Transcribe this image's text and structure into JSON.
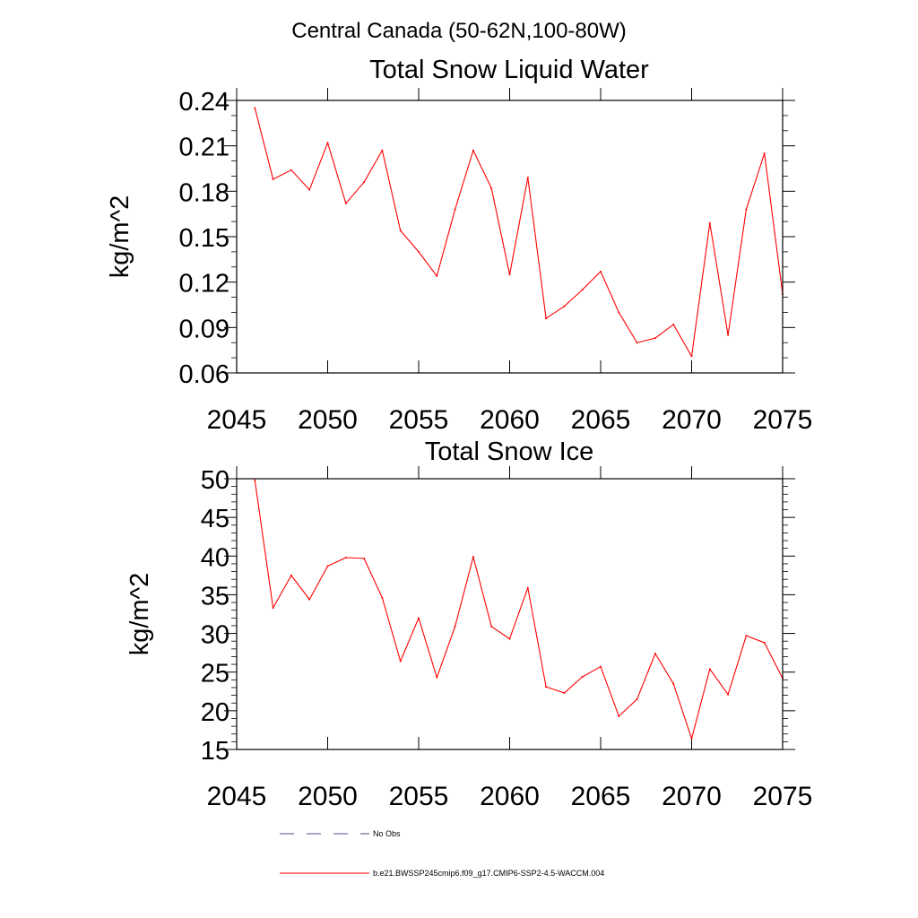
{
  "figure_title": "Central Canada (50-62N,100-80W)",
  "chart_data": [
    {
      "type": "line",
      "title": "Total Snow Liquid Water",
      "ylabel": "kg/m^2",
      "xlim": [
        2045,
        2075
      ],
      "ylim": [
        0.06,
        0.24
      ],
      "xticks": [
        2045,
        2050,
        2055,
        2060,
        2065,
        2070,
        2075
      ],
      "yticks": [
        "0.06",
        "0.09",
        "0.12",
        "0.15",
        "0.18",
        "0.21",
        "0.24"
      ],
      "series_color": "#ff0000",
      "x": [
        2046,
        2047,
        2048,
        2049,
        2050,
        2051,
        2052,
        2053,
        2054,
        2055,
        2056,
        2057,
        2058,
        2059,
        2060,
        2061,
        2062,
        2063,
        2064,
        2065,
        2066,
        2067,
        2068,
        2069,
        2070,
        2071,
        2072,
        2073,
        2074,
        2075
      ],
      "values": [
        0.235,
        0.188,
        0.194,
        0.181,
        0.212,
        0.172,
        0.186,
        0.207,
        0.154,
        0.14,
        0.124,
        0.168,
        0.207,
        0.182,
        0.125,
        0.189,
        0.096,
        0.104,
        0.115,
        0.127,
        0.1,
        0.08,
        0.083,
        0.092,
        0.071,
        0.159,
        0.085,
        0.168,
        0.205,
        0.112
      ]
    },
    {
      "type": "line",
      "title": "Total Snow Ice",
      "ylabel": "kg/m^2",
      "xlim": [
        2045,
        2075
      ],
      "ylim": [
        15,
        50
      ],
      "xticks": [
        2045,
        2050,
        2055,
        2060,
        2065,
        2070,
        2075
      ],
      "yticks": [
        "15",
        "20",
        "25",
        "30",
        "35",
        "40",
        "45",
        "50"
      ],
      "series_color": "#ff0000",
      "x": [
        2046,
        2047,
        2048,
        2049,
        2050,
        2051,
        2052,
        2053,
        2054,
        2055,
        2056,
        2057,
        2058,
        2059,
        2060,
        2061,
        2062,
        2063,
        2064,
        2065,
        2066,
        2067,
        2068,
        2069,
        2070,
        2071,
        2072,
        2073,
        2074,
        2075
      ],
      "values": [
        49.8,
        33.3,
        37.5,
        34.4,
        38.7,
        39.8,
        39.7,
        34.6,
        26.4,
        32.0,
        24.3,
        30.9,
        39.9,
        30.9,
        29.3,
        35.9,
        23.1,
        22.3,
        24.4,
        25.7,
        19.3,
        21.5,
        27.4,
        23.5,
        16.4,
        25.4,
        22.1,
        29.7,
        28.8,
        24.2
      ]
    }
  ],
  "legend": [
    {
      "label": "No Obs",
      "style": "dashed",
      "color": "#4a4f8a"
    },
    {
      "label": "b.e21.BWSSP245cmip6.f09_g17.CMIP6-SSP2-4.5-WACCM.004",
      "style": "solid",
      "color": "#ff0000"
    }
  ]
}
